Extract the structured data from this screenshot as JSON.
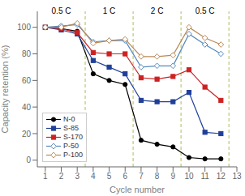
{
  "chart_data": {
    "type": "line",
    "x": [
      1,
      2,
      3,
      4,
      5,
      6,
      7,
      8,
      9,
      10,
      11,
      12
    ],
    "series": [
      {
        "name": "N-0",
        "color": "#000000",
        "marker": "circle",
        "line_style": "solid",
        "values": [
          100,
          99,
          97,
          65,
          60,
          57,
          15,
          12,
          10,
          2,
          1,
          1
        ]
      },
      {
        "name": "S-85",
        "color": "#1f3f99",
        "marker": "square",
        "line_style": "solid",
        "values": [
          100,
          98,
          95,
          75,
          70,
          65,
          45,
          44,
          44,
          51,
          21,
          20
        ]
      },
      {
        "name": "S-170",
        "color": "#cc2222",
        "marker": "square",
        "line_style": "solid",
        "values": [
          100,
          99,
          96,
          81,
          80,
          80,
          62,
          61,
          63,
          68,
          55,
          45
        ]
      },
      {
        "name": "P-50",
        "color": "#5588bb",
        "marker": "diamond",
        "line_style": "solid",
        "values": [
          100,
          101,
          102,
          89,
          90,
          90,
          70,
          71,
          71,
          95,
          87,
          80
        ]
      },
      {
        "name": "P-100",
        "color": "#bb8855",
        "marker": "diamond",
        "line_style": "solid",
        "values": [
          100,
          100,
          103,
          88,
          90,
          91,
          78,
          78,
          79,
          100,
          92,
          87
        ]
      }
    ],
    "xlabel": "Cycle number",
    "ylabel": "Capacity retention (%)",
    "xlim": [
      0.5,
      13.0
    ],
    "ylim": [
      -5,
      112
    ],
    "xticks": [
      1,
      2,
      3,
      4,
      5,
      6,
      7,
      8,
      9,
      10,
      11,
      12,
      13
    ],
    "yticks": [
      0,
      20,
      40,
      60,
      80,
      100
    ],
    "vlines": [
      3.5,
      6.5,
      9.5,
      12.5
    ],
    "annotations": [
      {
        "text": "0.5 C",
        "x": 2.0,
        "y": 107
      },
      {
        "text": "1 C",
        "x": 5.0,
        "y": 107
      },
      {
        "text": "2 C",
        "x": 8.0,
        "y": 107
      },
      {
        "text": "0.5 C",
        "x": 11.0,
        "y": 107
      }
    ],
    "legend": "lower left",
    "grid": false
  }
}
